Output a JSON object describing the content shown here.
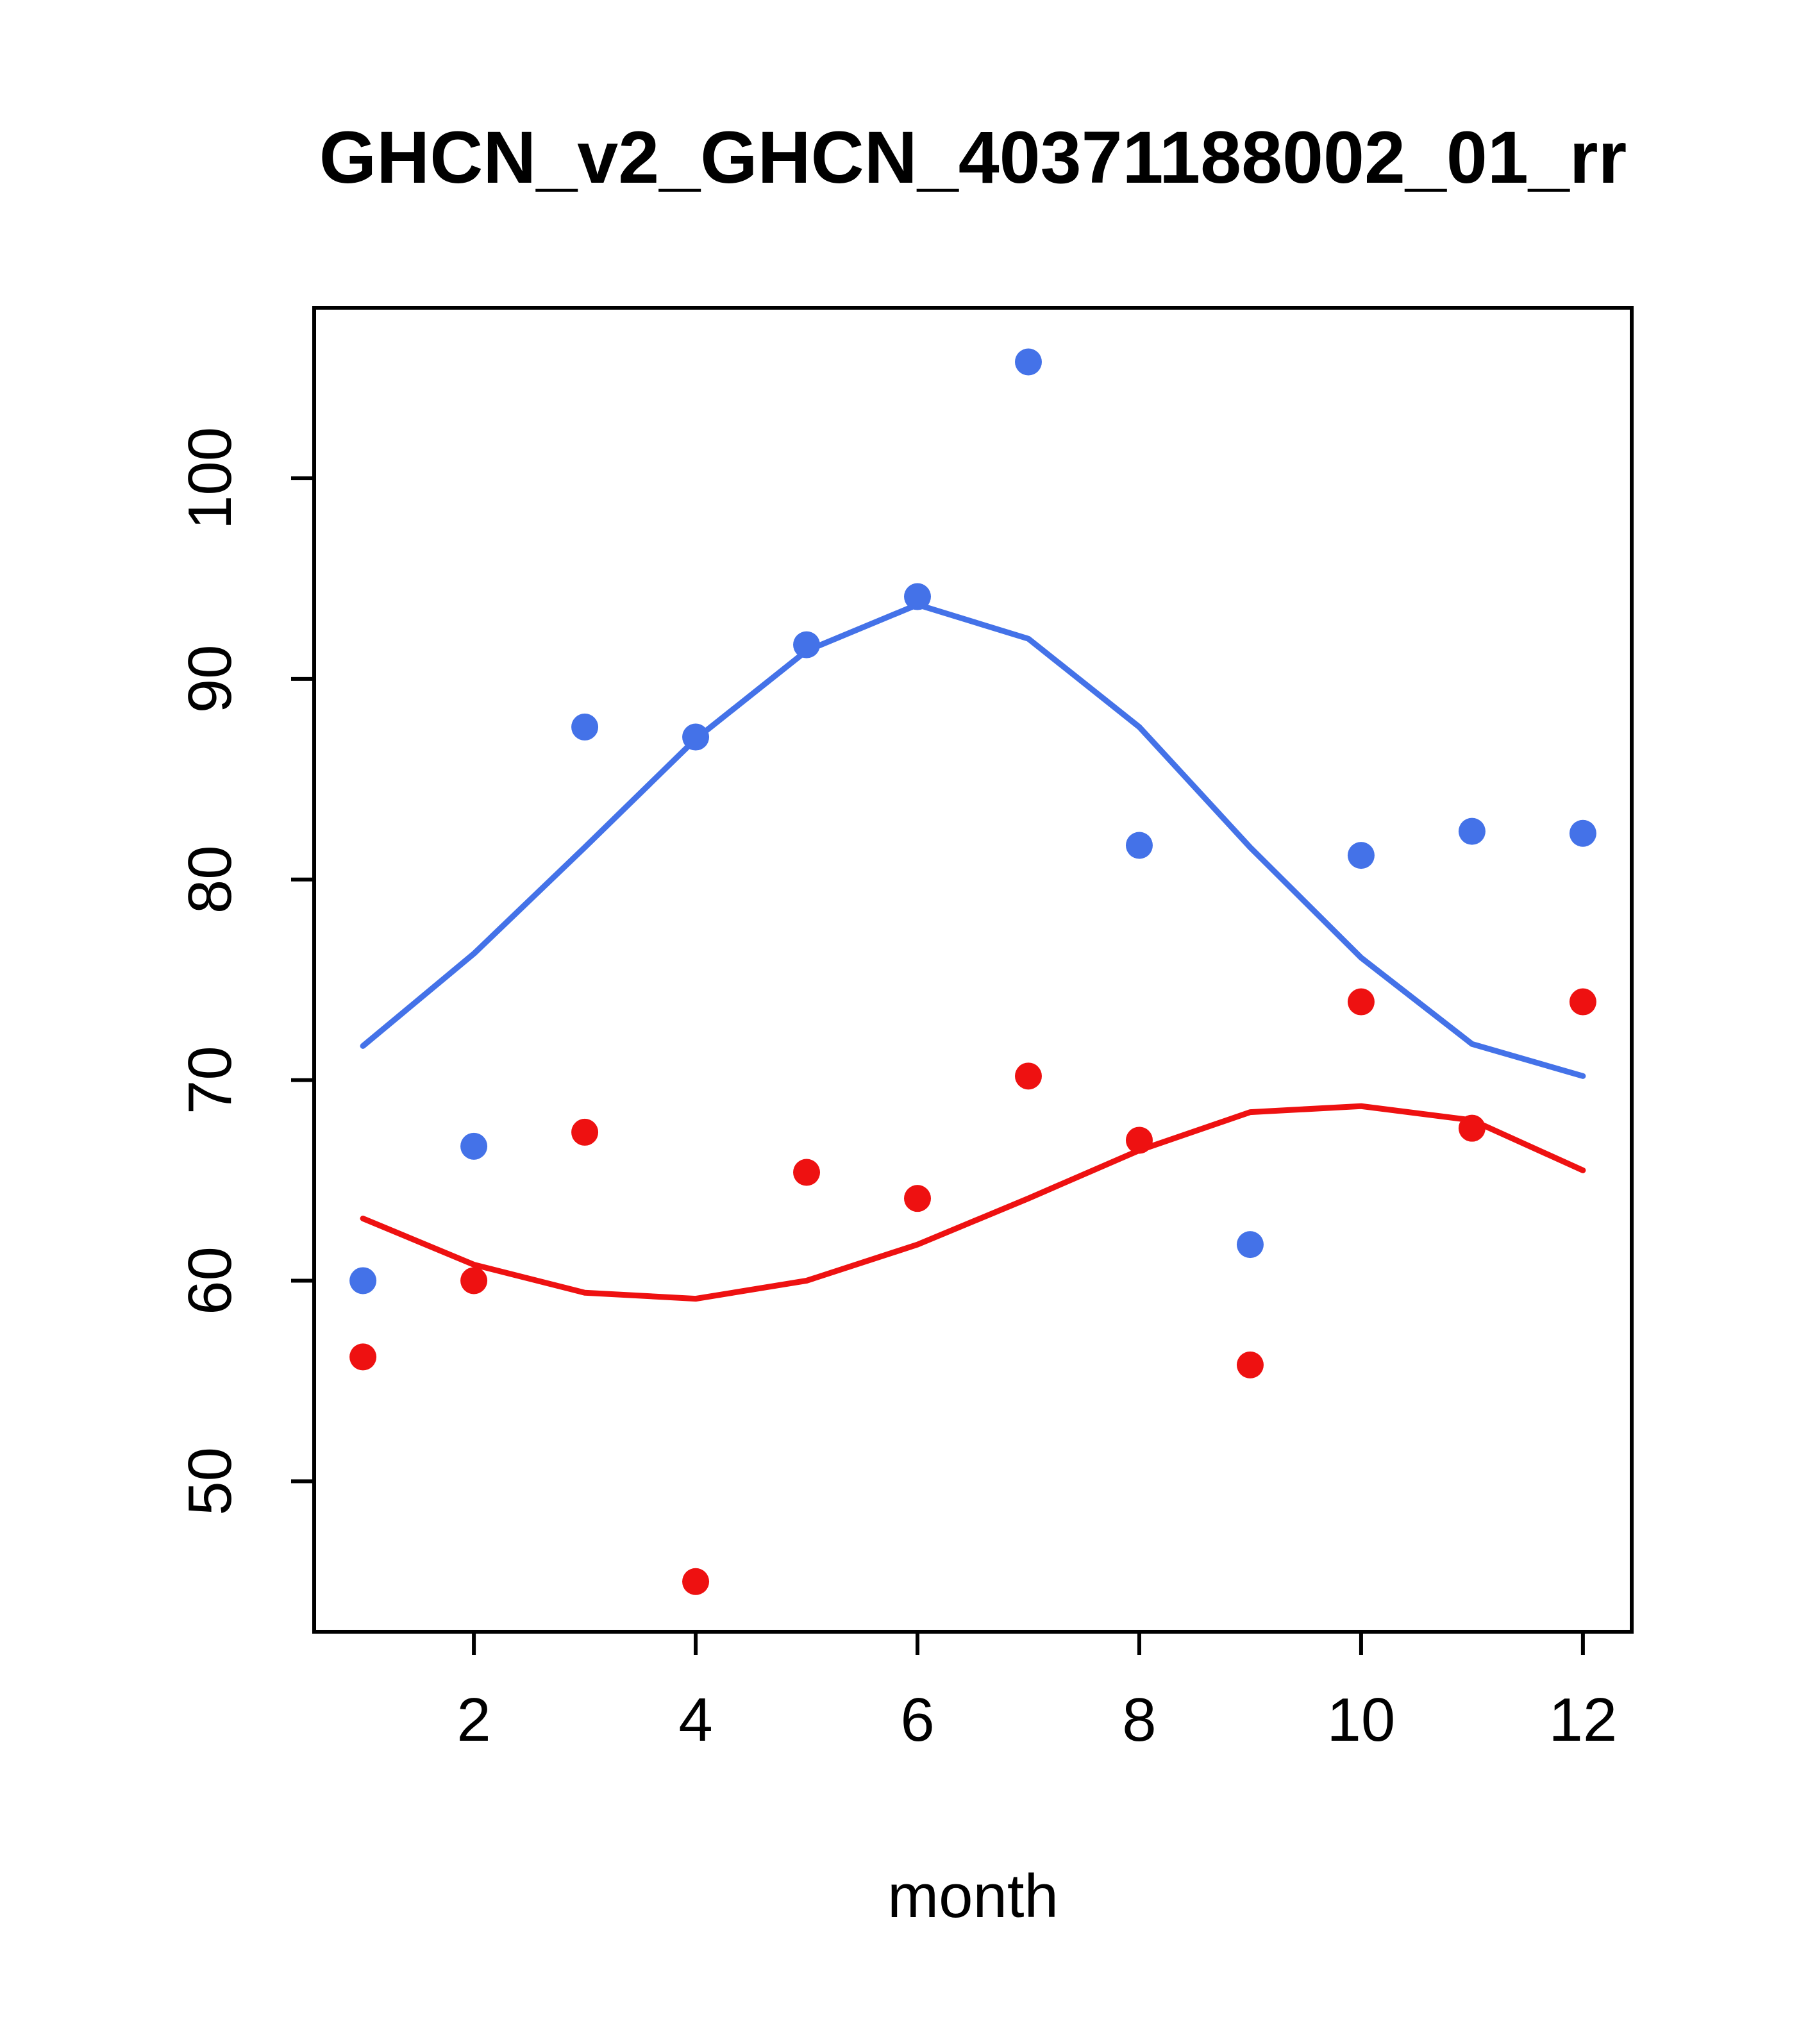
{
  "chart_data": {
    "type": "scatter",
    "title": "GHCN_v2_GHCN_40371188002_01_rr",
    "xlabel": "month",
    "ylabel": "",
    "xlim": [
      0.56,
      12.44
    ],
    "ylim": [
      42.5,
      108.5
    ],
    "xticks": [
      2,
      4,
      6,
      8,
      10,
      12
    ],
    "yticks": [
      50,
      60,
      70,
      80,
      90,
      100
    ],
    "grid": false,
    "legend": "none",
    "x": [
      1,
      2,
      3,
      4,
      5,
      6,
      7,
      8,
      9,
      10,
      11,
      12
    ],
    "series": [
      {
        "name": "blue-points",
        "kind": "points",
        "color": "#4472E8",
        "values": [
          60.0,
          66.7,
          87.6,
          87.1,
          91.7,
          94.1,
          105.8,
          81.7,
          61.8,
          81.2,
          82.4,
          82.3
        ]
      },
      {
        "name": "red-points",
        "kind": "points",
        "color": "#EE1111",
        "values": [
          56.2,
          60.0,
          67.4,
          45.0,
          65.4,
          64.1,
          70.2,
          67.0,
          55.8,
          73.9,
          67.6,
          73.9
        ]
      },
      {
        "name": "blue-smooth-line",
        "kind": "line",
        "color": "#4472E8",
        "values": [
          71.7,
          76.3,
          81.6,
          87.0,
          91.4,
          93.7,
          92.0,
          87.6,
          81.6,
          76.1,
          71.8,
          70.2
        ]
      },
      {
        "name": "red-smooth-line",
        "kind": "line",
        "color": "#EE1111",
        "values": [
          63.1,
          60.8,
          59.4,
          59.1,
          60.0,
          61.8,
          64.1,
          66.5,
          68.4,
          68.7,
          68.0,
          65.5
        ]
      }
    ]
  }
}
